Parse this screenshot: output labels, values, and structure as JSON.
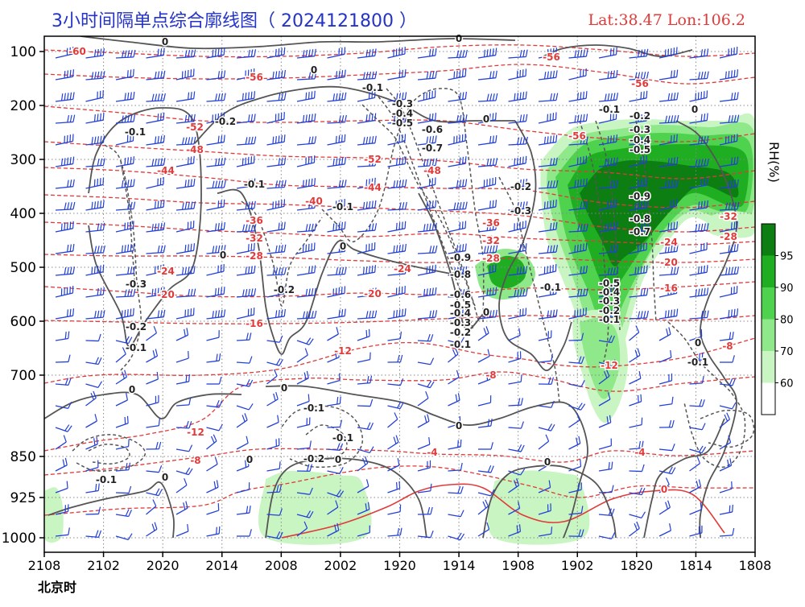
{
  "title": "3小时间隔单点综合廓线图（ 2024121800 ）",
  "coords": "Lat:38.47  Lon:106.2",
  "timezone_label": "北京时",
  "watermark": "",
  "chart_data": {
    "type": "time-height cross-section",
    "title": "3小时间隔单点综合廓线图（ 2024121800 ）",
    "location": "Lat:38.47  Lon:106.2",
    "xlabel": "北京时",
    "x_ticks": [
      "2108",
      "2102",
      "2020",
      "2014",
      "2008",
      "2002",
      "1920",
      "1914",
      "1908",
      "1902",
      "1820",
      "1814",
      "1808"
    ],
    "y_ticks": [
      100,
      200,
      300,
      400,
      500,
      600,
      700,
      850,
      925,
      1000
    ],
    "ylabel": "",
    "yrange": [
      100,
      1000
    ],
    "grid": true,
    "colorbar": {
      "label": "RH(%)",
      "ticks": [
        60,
        70,
        80,
        90,
        95
      ],
      "colors": [
        "#ffffff",
        "#c9f5c2",
        "#8fe88a",
        "#4fd24d",
        "#1fae22",
        "#0c7e12"
      ]
    },
    "temperature_contours": {
      "color": "#e03a3a",
      "style": "dashed",
      "labels": [
        -60,
        -56,
        -52,
        -48,
        -44,
        -40,
        -36,
        -32,
        -28,
        -24,
        -20,
        -16,
        -12,
        -8,
        -4,
        0
      ]
    },
    "vertical_velocity_contours": {
      "color": "#444444",
      "labels": [
        0,
        -0.1,
        -0.2,
        -0.3,
        -0.4,
        -0.5,
        -0.6,
        -0.7,
        -0.8,
        -0.9
      ]
    },
    "wind_barbs": {
      "color": "#2340d8"
    }
  }
}
